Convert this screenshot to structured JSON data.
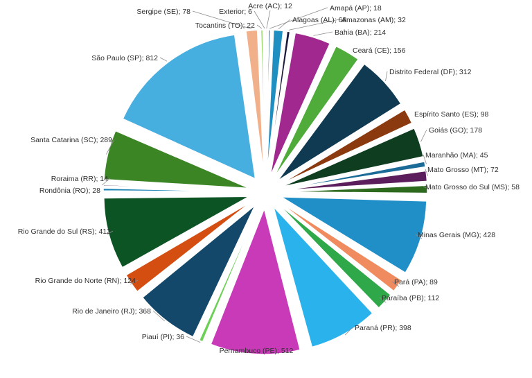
{
  "chart_data": {
    "type": "pie",
    "exploded": true,
    "legend": "none",
    "data_label_separator": "; ",
    "slices": [
      {
        "label": "Acre (AC)",
        "value": 12,
        "color": "#e8772c"
      },
      {
        "label": "Amapá (AP)",
        "value": 18,
        "color": "#1f4e79"
      },
      {
        "label": "Alagoas (AL)",
        "value": 68,
        "color": "#1f8fc2"
      },
      {
        "label": "Amazonas (AM)",
        "value": 32,
        "color": "#1a1a3d"
      },
      {
        "label": "Bahia (BA)",
        "value": 214,
        "color": "#a0288f"
      },
      {
        "label": "Ceará (CE)",
        "value": 156,
        "color": "#4fab3a"
      },
      {
        "label": "Distrito Federal (DF)",
        "value": 312,
        "color": "#0f3a52"
      },
      {
        "label": "Espírito Santo (ES)",
        "value": 98,
        "color": "#8b3a10"
      },
      {
        "label": "Goiás (GO)",
        "value": 178,
        "color": "#0e3d1f"
      },
      {
        "label": "Maranhão (MA)",
        "value": 45,
        "color": "#1a6b98"
      },
      {
        "label": "Mato Grosso (MT)",
        "value": 72,
        "color": "#5b1d5c"
      },
      {
        "label": "Mato Grosso do Sul (MS)",
        "value": 58,
        "color": "#2d6a1e"
      },
      {
        "label": "Minas Gerais (MG)",
        "value": 428,
        "color": "#208fc8"
      },
      {
        "label": "Pará (PA)",
        "value": 89,
        "color": "#ef8b5e"
      },
      {
        "label": "Paraíba (PB)",
        "value": 112,
        "color": "#2fa84a"
      },
      {
        "label": "Paraná (PR)",
        "value": 398,
        "color": "#2ab2ec"
      },
      {
        "label": "Pernambuco (PE)",
        "value": 512,
        "color": "#c93ab8"
      },
      {
        "label": "Piauí (PI)",
        "value": 36,
        "color": "#6cd056"
      },
      {
        "label": "Rio de Janeiro (RJ)",
        "value": 368,
        "color": "#13486a"
      },
      {
        "label": "Rio Grande do Norte (RN)",
        "value": 124,
        "color": "#d44e12"
      },
      {
        "label": "Rio Grande do Sul (RS)",
        "value": 412,
        "color": "#0c5423"
      },
      {
        "label": "Rondônia (RO)",
        "value": 28,
        "color": "#1a82b5"
      },
      {
        "label": "Roraima (RR)",
        "value": 14,
        "color": "#7b2e83"
      },
      {
        "label": "Santa Catarina (SC)",
        "value": 289,
        "color": "#3c8525"
      },
      {
        "label": "São Paulo (SP)",
        "value": 812,
        "color": "#47aee0"
      },
      {
        "label": "Sergipe (SE)",
        "value": 78,
        "color": "#f1b08a"
      },
      {
        "label": "Tocantins (TO)",
        "value": 22,
        "color": "#8fd460"
      },
      {
        "label": "Exterior",
        "value": 6,
        "color": "#2a7a2a"
      }
    ]
  }
}
